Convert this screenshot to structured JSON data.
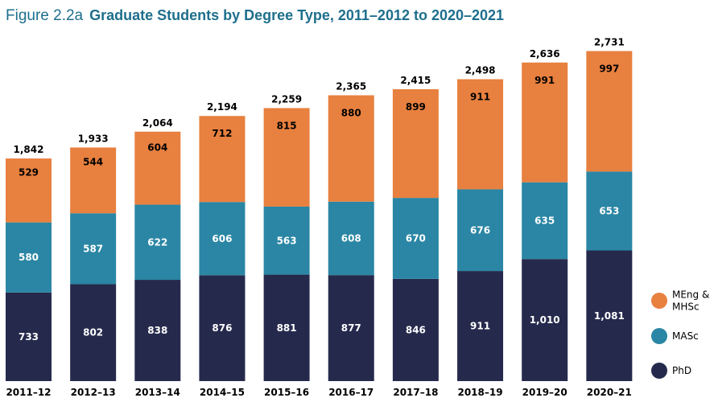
{
  "figure": {
    "number": "Figure 2.2a",
    "title": "Graduate Students by Degree Type, 2011–2012 to 2020–2021"
  },
  "colors": {
    "title": "#1e6f8c",
    "PhD": "#252a4d",
    "MASc": "#2a86a4",
    "MEng": "#e8803f"
  },
  "chart_data": {
    "type": "bar",
    "stacked": true,
    "title": "Graduate Students by Degree Type, 2011–2012 to 2020–2021",
    "categories": [
      "2011–12",
      "2012–13",
      "2013–14",
      "2014–15",
      "2015–16",
      "2016–17",
      "2017–18",
      "2018–19",
      "2019–20",
      "2020–21"
    ],
    "series": [
      {
        "name": "PhD",
        "key": "PhD",
        "values": [
          733,
          802,
          838,
          876,
          881,
          877,
          846,
          911,
          1010,
          1081
        ],
        "labels": [
          "733",
          "802",
          "838",
          "876",
          "881",
          "877",
          "846",
          "911",
          "1,010",
          "1,081"
        ]
      },
      {
        "name": "MASc",
        "key": "MASc",
        "values": [
          580,
          587,
          622,
          606,
          563,
          608,
          670,
          676,
          635,
          653
        ],
        "labels": [
          "580",
          "587",
          "622",
          "606",
          "563",
          "608",
          "670",
          "676",
          "635",
          "653"
        ]
      },
      {
        "name": "MEng & MHSc",
        "key": "MEng",
        "values": [
          529,
          544,
          604,
          712,
          815,
          880,
          899,
          911,
          991,
          997
        ],
        "labels": [
          "529",
          "544",
          "604",
          "712",
          "815",
          "880",
          "899",
          "911",
          "991",
          "997"
        ]
      }
    ],
    "totals": [
      1842,
      1933,
      2064,
      2194,
      2259,
      2365,
      2415,
      2498,
      2636,
      2731
    ],
    "total_labels": [
      "1,842",
      "1,933",
      "2,064",
      "2,194",
      "2,259",
      "2,365",
      "2,415",
      "2,498",
      "2,636",
      "2,731"
    ],
    "legend": {
      "position": "right",
      "order": [
        "MEng",
        "MASc",
        "PhD"
      ],
      "entries": {
        "MEng": [
          "MEng &",
          "MHSc"
        ],
        "MASc": [
          "MASc"
        ],
        "PhD": [
          "PhD"
        ]
      }
    },
    "xlabel": "",
    "ylabel": "",
    "ylim": [
      0,
      2731
    ],
    "grid": false
  }
}
